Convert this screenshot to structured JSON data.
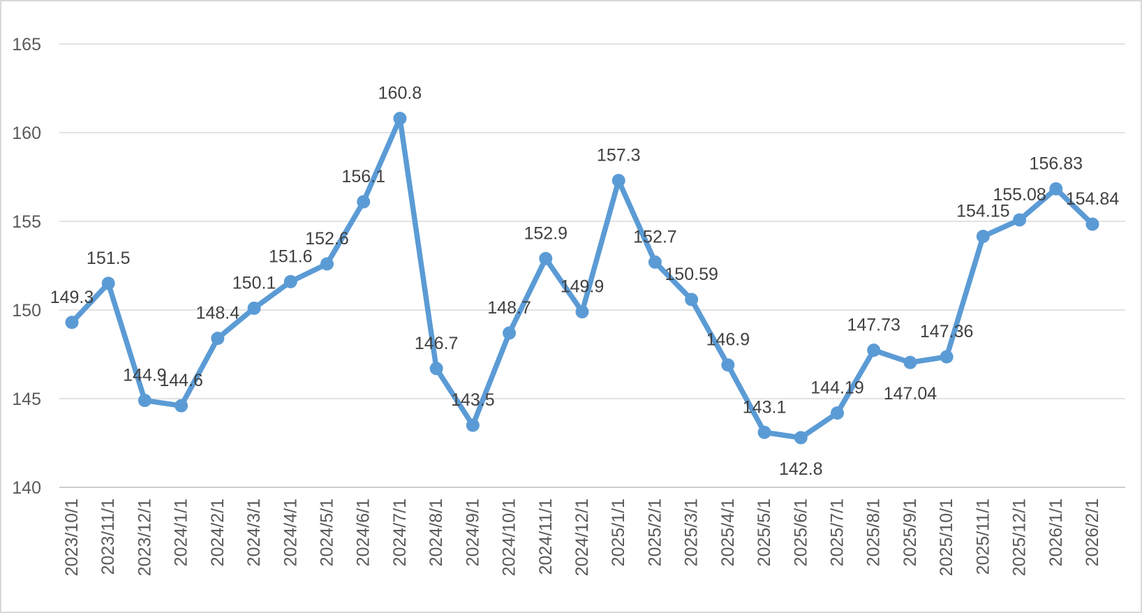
{
  "chart_data": {
    "type": "line",
    "title": "",
    "categories": [
      "2023/10/1",
      "2023/11/1",
      "2023/12/1",
      "2024/1/1",
      "2024/2/1",
      "2024/3/1",
      "2024/4/1",
      "2024/5/1",
      "2024/6/1",
      "2024/7/1",
      "2024/8/1",
      "2024/9/1",
      "2024/10/1",
      "2024/11/1",
      "2024/12/1",
      "2025/1/1",
      "2025/2/1",
      "2025/3/1",
      "2025/4/1",
      "2025/5/1",
      "2025/6/1",
      "2025/7/1",
      "2025/8/1",
      "2025/9/1",
      "2025/10/1",
      "2025/11/1",
      "2025/12/1",
      "2026/1/1",
      "2026/2/1"
    ],
    "values": [
      149.3,
      151.5,
      144.9,
      144.6,
      148.4,
      150.1,
      151.6,
      152.6,
      156.1,
      160.8,
      146.7,
      143.5,
      148.7,
      152.9,
      149.9,
      157.3,
      152.7,
      150.59,
      146.9,
      143.1,
      142.8,
      144.19,
      147.73,
      147.04,
      147.36,
      154.15,
      155.08,
      156.83,
      154.84
    ],
    "point_labels": [
      "149.3",
      "151.5",
      "144.9",
      "144.6",
      "148.4",
      "150.1",
      "151.6",
      "152.6",
      "156.1",
      "160.8",
      "146.7",
      "143.5",
      "148.7",
      "152.9",
      "149.9",
      "157.3",
      "152.7",
      "150.59",
      "146.9",
      "143.1",
      "142.8",
      "144.19",
      "147.73",
      "147.04",
      "147.36",
      "154.15",
      "155.08",
      "156.83",
      "154.84"
    ],
    "labels_below_indices": [
      20,
      23
    ],
    "ylim": [
      140,
      165
    ],
    "yticks": [
      140,
      145,
      150,
      155,
      160,
      165
    ],
    "xlabel": "",
    "ylabel": "",
    "grid": true,
    "legend_position": "none",
    "series_color": "#5B9BD5",
    "marker": "circle",
    "axis_label_color": "#595959",
    "data_label_color": "#404040",
    "gridline_color": "#D9D9D9",
    "axis_line_color": "#C6C6C6",
    "background_color": "#FFFFFF",
    "border_color": "#D9D9D9"
  }
}
